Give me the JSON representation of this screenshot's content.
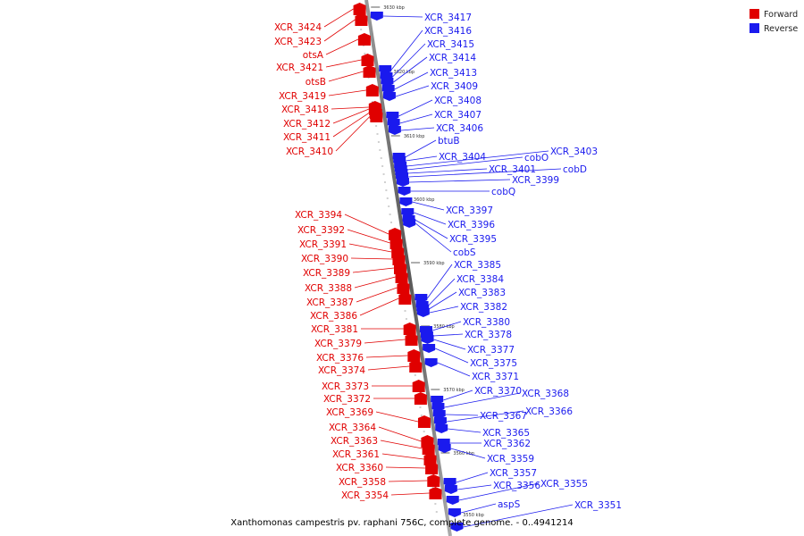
{
  "caption": "Xanthomonas campestris pv. raphani 756C, complete genome. - 0..4941214",
  "legend": [
    {
      "label": "Forward",
      "color": "#e00000"
    },
    {
      "label": "Reverse",
      "color": "#1a1aee"
    }
  ],
  "ticks": [
    "3630 kbp",
    "3620 kbp",
    "3610 kbp",
    "3600 kbp",
    "3590 kbp",
    "3580 kbp",
    "3570 kbp",
    "3560 kbp",
    "3550 kbp"
  ],
  "forward_genes": [
    "XCR_3424",
    "XCR_3423",
    "otsA",
    "XCR_3421",
    "otsB",
    "XCR_3419",
    "XCR_3418",
    "XCR_3412",
    "XCR_3411",
    "XCR_3410",
    "XCR_3394",
    "XCR_3392",
    "XCR_3391",
    "XCR_3390",
    "XCR_3389",
    "XCR_3388",
    "XCR_3387",
    "XCR_3386",
    "XCR_3381",
    "XCR_3379",
    "XCR_3376",
    "XCR_3374",
    "XCR_3373",
    "XCR_3372",
    "XCR_3369",
    "XCR_3364",
    "XCR_3363",
    "XCR_3361",
    "XCR_3360",
    "XCR_3358",
    "XCR_3354"
  ],
  "reverse_genes": [
    "XCR_3417",
    "XCR_3416",
    "XCR_3415",
    "XCR_3414",
    "XCR_3413",
    "XCR_3409",
    "XCR_3408",
    "XCR_3407",
    "XCR_3406",
    "btuB",
    "XCR_3404",
    "XCR_3403",
    "cobO",
    "XCR_3401",
    "cobD",
    "XCR_3399",
    "cobQ",
    "XCR_3397",
    "XCR_3396",
    "XCR_3395",
    "cobS",
    "XCR_3385",
    "XCR_3384",
    "XCR_3383",
    "XCR_3382",
    "XCR_3380",
    "XCR_3378",
    "XCR_3377",
    "XCR_3375",
    "XCR_3371",
    "XCR_3370",
    "XCR_3368",
    "XCR_3367",
    "XCR_3366",
    "XCR_3365",
    "XCR_3362",
    "XCR_3359",
    "XCR_3357",
    "XCR_3356",
    "XCR_3355",
    "aspS",
    "XCR_3351"
  ]
}
